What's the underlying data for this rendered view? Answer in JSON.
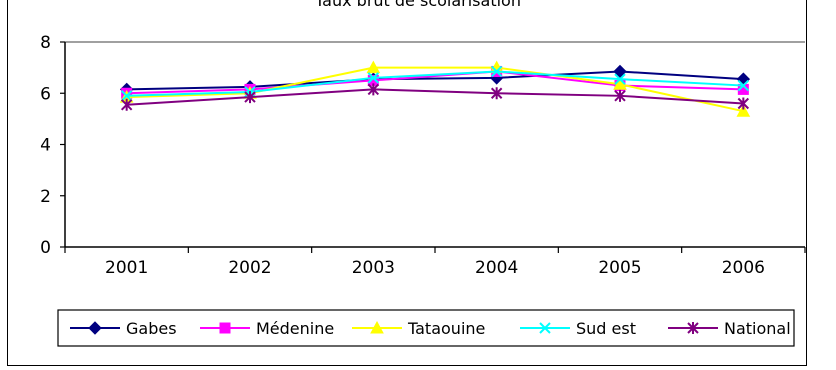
{
  "chart_data": {
    "type": "line",
    "title": "Taux brut de scolarisation",
    "categories": [
      "2001",
      "2002",
      "2003",
      "2004",
      "2005",
      "2006"
    ],
    "ylim": [
      0,
      8
    ],
    "yticks": [
      0,
      2,
      4,
      6,
      8
    ],
    "grid": false,
    "legend_position": "bottom",
    "series": [
      {
        "name": "Gabes",
        "color": "#000080",
        "marker": "diamond",
        "values": [
          6.15,
          6.25,
          6.55,
          6.6,
          6.85,
          6.55
        ]
      },
      {
        "name": "Médenine",
        "color": "#ff00ff",
        "marker": "square",
        "values": [
          6.0,
          6.15,
          6.5,
          6.85,
          6.3,
          6.15
        ]
      },
      {
        "name": "Tataouine",
        "color": "#ffff00",
        "marker": "triangle",
        "values": [
          5.85,
          6.0,
          7.0,
          7.0,
          6.35,
          5.3
        ]
      },
      {
        "name": "Sud est",
        "color": "#00ffff",
        "marker": "x",
        "values": [
          5.9,
          6.05,
          6.6,
          6.85,
          6.55,
          6.3
        ]
      },
      {
        "name": "National",
        "color": "#800080",
        "marker": "star",
        "values": [
          5.55,
          5.85,
          6.15,
          6.0,
          5.9,
          5.6
        ]
      }
    ]
  }
}
